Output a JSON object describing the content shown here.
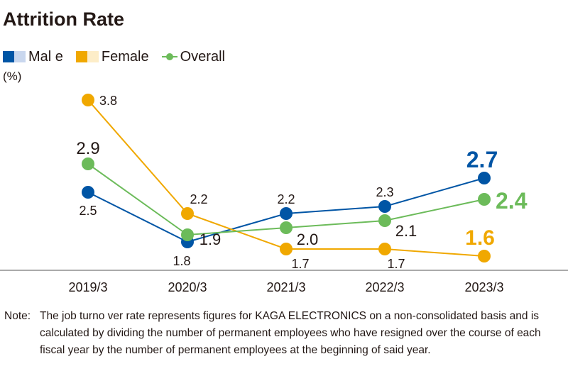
{
  "title": "Attrition Rate",
  "unit": "(%)",
  "colors": {
    "male": "#0055a5",
    "male_light": "#c9d7ee",
    "female": "#f0a800",
    "female_light": "#fdedc8",
    "overall": "#6cbb5a",
    "axis": "#555555"
  },
  "note": {
    "head": "Note:",
    "body": "The job turno ver rate represents figures for KAGA ELECTRONICS on a non-consolidated basis and is calculated by dividing the number of permanent employees who have resigned over the course of each fiscal year by the number of permanent employees at the beginning of said year."
  },
  "chart_data": {
    "type": "line",
    "categories": [
      "2019/3",
      "2020/3",
      "2021/3",
      "2022/3",
      "2023/3"
    ],
    "series": [
      {
        "name": "Mal e",
        "key": "male",
        "values": [
          2.5,
          1.8,
          2.2,
          2.3,
          2.7
        ],
        "labels": [
          "2.5",
          "1.8",
          "2.2",
          "2.3",
          "2.7"
        ]
      },
      {
        "name": "Female",
        "key": "female",
        "values": [
          3.8,
          2.2,
          1.7,
          1.7,
          1.6
        ],
        "labels": [
          "3.8",
          "2.2",
          "1.7",
          "1.7",
          "1.6"
        ]
      },
      {
        "name": "Overall",
        "key": "overall",
        "values": [
          2.9,
          1.9,
          2.0,
          2.1,
          2.4
        ],
        "labels": [
          "2.9",
          "1.9",
          "2.0",
          "2.1",
          "2.4"
        ]
      }
    ],
    "ylim": [
      1.3,
      4.0
    ],
    "grid": false,
    "legend": "top-left"
  }
}
